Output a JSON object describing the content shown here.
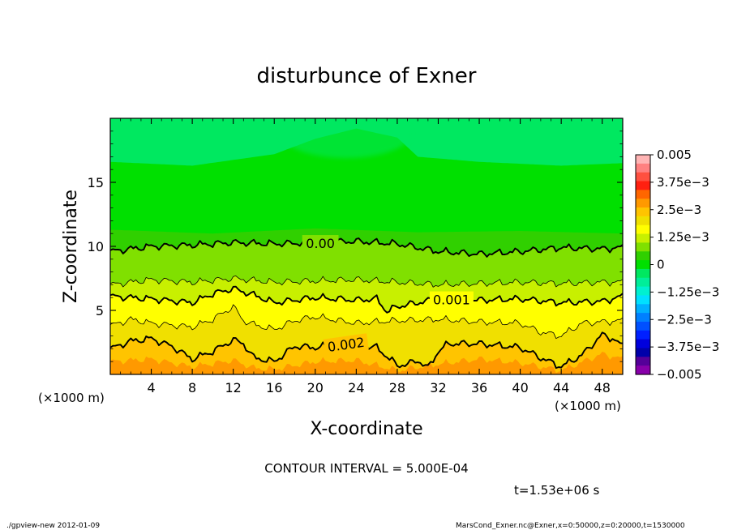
{
  "chart_data": {
    "type": "heatmap",
    "title": "disturbunce of Exner",
    "xlabel": "X-coordinate",
    "ylabel": "Z-coordinate",
    "x_unit_left": "(×1000 m)",
    "x_unit_right": "(×1000 m)",
    "xlim": [
      0,
      50
    ],
    "ylim": [
      0,
      20
    ],
    "x_ticks": [
      "4",
      "8",
      "12",
      "16",
      "20",
      "24",
      "28",
      "32",
      "36",
      "40",
      "44",
      "48"
    ],
    "x_tick_values": [
      4,
      8,
      12,
      16,
      20,
      24,
      28,
      32,
      36,
      40,
      44,
      48
    ],
    "y_ticks": [
      "5",
      "10",
      "15"
    ],
    "y_tick_values": [
      5,
      10,
      15
    ],
    "colorbar": {
      "min": -0.005,
      "max": 0.005,
      "labels": [
        "0.005",
        "3.75e−3",
        "2.5e−3",
        "1.25e−3",
        "0",
        "−1.25e−3",
        "−2.5e−3",
        "−3.75e−3",
        "−0.005"
      ],
      "label_values": [
        0.005,
        0.00375,
        0.0025,
        0.00125,
        0,
        -0.00125,
        -0.0025,
        -0.00375,
        -0.005
      ],
      "colors_top_to_bottom": [
        "#ffb4b4",
        "#ff8080",
        "#ff5040",
        "#ff2010",
        "#ff6600",
        "#ff9900",
        "#ffc400",
        "#f0e000",
        "#ffff00",
        "#c8f000",
        "#80e000",
        "#30d000",
        "#00e000",
        "#00e860",
        "#00ee99",
        "#00f0d0",
        "#00e0ff",
        "#00b0ff",
        "#0080ff",
        "#0050ff",
        "#0020ff",
        "#0000dd",
        "#0000aa",
        "#550099",
        "#8800aa"
      ]
    },
    "contour_labels": [
      {
        "text": "0.00",
        "value": 0.0
      },
      {
        "text": "0.001",
        "value": 0.001
      },
      {
        "text": "0.002",
        "value": 0.002
      }
    ],
    "contour_lines": [
      {
        "level": 0.0,
        "style": "bold",
        "x": [
          0,
          2,
          4,
          8,
          12,
          16,
          20,
          24,
          28,
          32,
          36,
          40,
          44,
          48,
          50
        ],
        "z": [
          9.6,
          9.8,
          10.0,
          10.1,
          10.3,
          10.2,
          10.3,
          10.4,
          10.2,
          9.6,
          9.4,
          9.6,
          9.9,
          9.8,
          9.9
        ]
      },
      {
        "level": 0.0005,
        "style": "thin",
        "x": [
          0,
          4,
          8,
          12,
          16,
          20,
          24,
          28,
          32,
          36,
          40,
          44,
          48,
          50
        ],
        "z": [
          7.0,
          7.4,
          7.2,
          7.5,
          7.2,
          7.3,
          7.4,
          7.2,
          7.0,
          7.1,
          7.2,
          7.1,
          7.2,
          7.2
        ]
      },
      {
        "level": 0.001,
        "style": "bold",
        "x": [
          0,
          4,
          8,
          10,
          12,
          14,
          16,
          20,
          24,
          26,
          27,
          28,
          32,
          36,
          40,
          44,
          48,
          50
        ],
        "z": [
          6.1,
          5.9,
          5.6,
          6.3,
          6.7,
          6.2,
          5.6,
          6.0,
          5.8,
          5.9,
          4.9,
          5.3,
          5.9,
          5.8,
          5.9,
          5.6,
          5.7,
          6.1
        ]
      },
      {
        "level": 0.0015,
        "style": "thin",
        "x": [
          0,
          2,
          4,
          8,
          10,
          12,
          13,
          14,
          16,
          18,
          20,
          24,
          28,
          32,
          36,
          40,
          42,
          44,
          46,
          48,
          50
        ],
        "z": [
          3.8,
          4.3,
          4.0,
          3.7,
          4.3,
          5.3,
          4.2,
          3.9,
          3.5,
          4.2,
          4.5,
          4.0,
          4.2,
          4.3,
          4.1,
          4.0,
          3.3,
          3.0,
          4.0,
          4.1,
          4.2
        ]
      },
      {
        "level": 0.002,
        "style": "bold",
        "x": [
          0,
          2,
          4,
          6,
          8,
          10,
          12,
          13,
          14,
          16,
          18,
          20,
          22,
          24,
          26,
          28,
          29,
          30,
          31,
          32,
          33,
          34,
          36,
          40,
          42,
          44,
          46,
          48,
          49,
          50
        ],
        "z": [
          2.0,
          2.6,
          2.8,
          2.2,
          1.2,
          1.8,
          2.7,
          2.4,
          1.3,
          1.0,
          2.2,
          2.1,
          2.3,
          2.3,
          2.1,
          0.7,
          0.8,
          1.1,
          0.5,
          1.8,
          2.4,
          2.4,
          2.4,
          2.1,
          1.3,
          0.6,
          1.5,
          3.1,
          2.8,
          2.2
        ]
      }
    ],
    "fill_bands": [
      {
        "label": "-1.25e-3 to -1e-3",
        "color": "#00e860"
      },
      {
        "label": "-1e-3 to -5e-4",
        "color": "#00e000"
      },
      {
        "label": "-5e-4 to 0",
        "color": "#30d000"
      },
      {
        "label": "0 to 5e-4",
        "color": "#80e000"
      },
      {
        "label": "5e-4 to 1e-3",
        "color": "#c8f000"
      },
      {
        "label": "1e-3 to 1.5e-3",
        "color": "#ffff00"
      },
      {
        "label": "1.5e-3 to 2e-3",
        "color": "#f0e000"
      },
      {
        "label": "2e-3 to 2.5e-3",
        "color": "#ffc400"
      },
      {
        "label": "2.5e-3 to 3e-3",
        "color": "#ff9900"
      }
    ]
  },
  "footer": {
    "contour_interval": "CONTOUR INTERVAL = 5.000E-04",
    "time": "t=1.53e+06 s",
    "program": "./gpview-new   2012-01-09",
    "source": "MarsCond_Exner.nc@Exner,x=0:50000,z=0:20000,t=1530000"
  }
}
